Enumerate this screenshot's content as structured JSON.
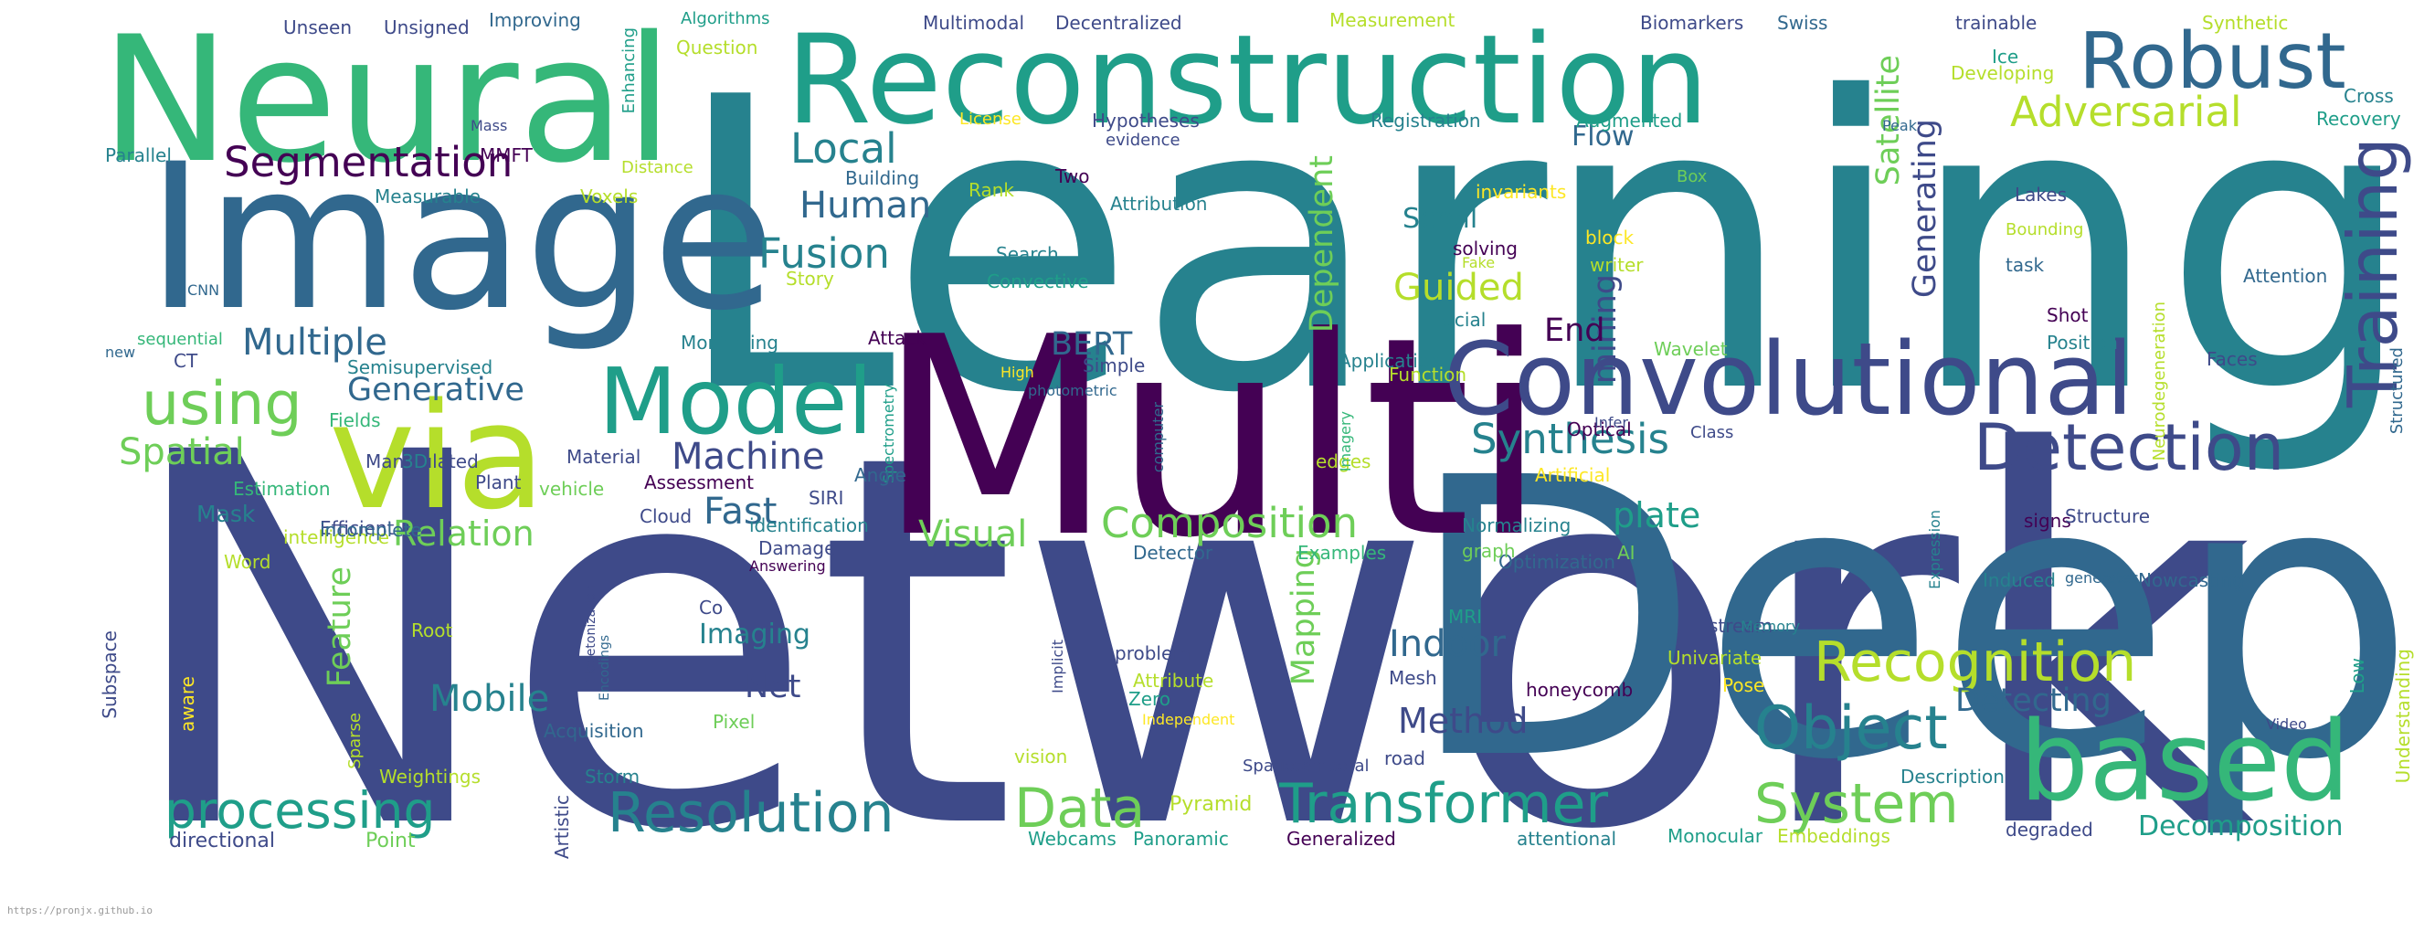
{
  "palette": [
    "#440154",
    "#3e4a89",
    "#31688e",
    "#26828e",
    "#1f9e89",
    "#35b779",
    "#6ece58",
    "#b5de2b",
    "#fde725"
  ],
  "footer": "https://pronjx.github.io",
  "words": [
    {
      "text": "Network",
      "color": "#3e4a89"
    },
    {
      "text": "Learning",
      "color": "#26828e"
    },
    {
      "text": "Deep",
      "color": "#31688e"
    },
    {
      "text": "Multi",
      "color": "#440154"
    },
    {
      "text": "Image",
      "color": "#31688e"
    },
    {
      "text": "Neural",
      "color": "#35b779"
    },
    {
      "text": "Reconstruction",
      "color": "#1f9e89"
    },
    {
      "text": "via",
      "color": "#b5de2b"
    },
    {
      "text": "Convolutional",
      "color": "#3e4a89"
    },
    {
      "text": "based",
      "color": "#35b779"
    },
    {
      "text": "Model",
      "color": "#1f9e89"
    },
    {
      "text": "Robust",
      "color": "#31688e"
    },
    {
      "text": "Training",
      "color": "#3e4a89"
    },
    {
      "text": "Detection",
      "color": "#3e4a89"
    },
    {
      "text": "Recognition",
      "color": "#b5de2b"
    },
    {
      "text": "Object",
      "color": "#26828e"
    },
    {
      "text": "Transformer",
      "color": "#1f9e89"
    },
    {
      "text": "Resolution",
      "color": "#26828e"
    },
    {
      "text": "System",
      "color": "#6ece58"
    },
    {
      "text": "processing",
      "color": "#1f9e89"
    },
    {
      "text": "Data",
      "color": "#6ece58"
    },
    {
      "text": "Composition",
      "color": "#6ece58"
    },
    {
      "text": "using",
      "color": "#6ece58"
    },
    {
      "text": "Segmentation",
      "color": "#440154"
    },
    {
      "text": "Adversarial",
      "color": "#b5de2b"
    },
    {
      "text": "Fusion",
      "color": "#26828e"
    },
    {
      "text": "Synthesis",
      "color": "#26828e"
    },
    {
      "text": "Machine",
      "color": "#3e4a89"
    },
    {
      "text": "Spatial",
      "color": "#6ece58"
    },
    {
      "text": "Multiple",
      "color": "#31688e"
    },
    {
      "text": "Generative",
      "color": "#31688e"
    },
    {
      "text": "Local",
      "color": "#26828e"
    },
    {
      "text": "Human",
      "color": "#31688e"
    },
    {
      "text": "Guided",
      "color": "#b5de2b"
    },
    {
      "text": "Indoor",
      "color": "#31688e"
    },
    {
      "text": "Method",
      "color": "#3e4a89"
    },
    {
      "text": "Mobile",
      "color": "#26828e"
    },
    {
      "text": "Net",
      "color": "#3e4a89"
    },
    {
      "text": "Relation",
      "color": "#6ece58"
    },
    {
      "text": "Visual",
      "color": "#6ece58"
    },
    {
      "text": "Fast",
      "color": "#31688e"
    },
    {
      "text": "plate",
      "color": "#1f9e89"
    },
    {
      "text": "BERT",
      "color": "#31688e"
    },
    {
      "text": "Detecting",
      "color": "#31688e"
    },
    {
      "text": "Decomposition",
      "color": "#1f9e89"
    },
    {
      "text": "Feature",
      "color": "#6ece58"
    },
    {
      "text": "Mapping",
      "color": "#6ece58"
    },
    {
      "text": "Dependent",
      "color": "#6ece58"
    },
    {
      "text": "Satellite",
      "color": "#6ece58"
    },
    {
      "text": "Generating",
      "color": "#3e4a89"
    },
    {
      "text": "mining",
      "color": "#3e4a89"
    },
    {
      "text": "End",
      "color": "#440154"
    },
    {
      "text": "Imaging",
      "color": "#26828e"
    },
    {
      "text": "Scroll",
      "color": "#26828e"
    },
    {
      "text": "Flow",
      "color": "#31688e"
    },
    {
      "text": "Mask",
      "color": "#26828e"
    },
    {
      "text": "Pyramid",
      "color": "#b5de2b"
    },
    {
      "text": "directional",
      "color": "#3e4a89"
    },
    {
      "text": "Point",
      "color": "#6ece58"
    },
    {
      "text": "Webcams",
      "color": "#1f9e89"
    },
    {
      "text": "Panoramic",
      "color": "#1f9e89"
    },
    {
      "text": "Generalized",
      "color": "#440154"
    },
    {
      "text": "attentional",
      "color": "#26828e"
    },
    {
      "text": "Monocular",
      "color": "#1f9e89"
    },
    {
      "text": "Embeddings",
      "color": "#b5de2b"
    },
    {
      "text": "degraded",
      "color": "#3e4a89"
    },
    {
      "text": "Understanding",
      "color": "#b5de2b"
    },
    {
      "text": "Low",
      "color": "#1f9e89"
    },
    {
      "text": "Nowcasting",
      "color": "#31688e"
    },
    {
      "text": "Induced",
      "color": "#26828e"
    },
    {
      "text": "Shot",
      "color": "#440154"
    },
    {
      "text": "Position",
      "color": "#26828e"
    },
    {
      "text": "Faces",
      "color": "#3e4a89"
    },
    {
      "text": "Structured",
      "color": "#31688e"
    },
    {
      "text": "Attention",
      "color": "#31688e"
    },
    {
      "text": "Neurodegeneration",
      "color": "#b5de2b"
    },
    {
      "text": "Lakes",
      "color": "#3e4a89"
    },
    {
      "text": "Bounding",
      "color": "#b5de2b"
    },
    {
      "text": "task",
      "color": "#31688e"
    },
    {
      "text": "Cross",
      "color": "#26828e"
    },
    {
      "text": "Recovery",
      "color": "#1f9e89"
    },
    {
      "text": "Synthetic",
      "color": "#b5de2b"
    },
    {
      "text": "trainable",
      "color": "#3e4a89"
    },
    {
      "text": "Ice",
      "color": "#1f9e89"
    },
    {
      "text": "Developing",
      "color": "#b5de2b"
    },
    {
      "text": "Peak",
      "color": "#31688e"
    },
    {
      "text": "Biomarkers",
      "color": "#3e4a89"
    },
    {
      "text": "Swiss",
      "color": "#31688e"
    },
    {
      "text": "Measurement",
      "color": "#b5de2b"
    },
    {
      "text": "Augmented",
      "color": "#1f9e89"
    },
    {
      "text": "Registration",
      "color": "#26828e"
    },
    {
      "text": "Hypotheses",
      "color": "#3e4a89"
    },
    {
      "text": "evidence",
      "color": "#3e4a89"
    },
    {
      "text": "License",
      "color": "#fde725"
    },
    {
      "text": "Multimodal",
      "color": "#3e4a89"
    },
    {
      "text": "Decentralized",
      "color": "#3e4a89"
    },
    {
      "text": "Algorithms",
      "color": "#1f9e89"
    },
    {
      "text": "Question",
      "color": "#b5de2b"
    },
    {
      "text": "Improving",
      "color": "#31688e"
    },
    {
      "text": "Unsigned",
      "color": "#3e4a89"
    },
    {
      "text": "Unseen",
      "color": "#3e4a89"
    },
    {
      "text": "Enhancing",
      "color": "#1f9e89"
    },
    {
      "text": "Mass",
      "color": "#3e4a89"
    },
    {
      "text": "MMFT",
      "color": "#440154"
    },
    {
      "text": "Distance",
      "color": "#b5de2b"
    },
    {
      "text": "Parallel",
      "color": "#26828e"
    },
    {
      "text": "Measurable",
      "color": "#26828e"
    },
    {
      "text": "Voxels",
      "color": "#b5de2b"
    },
    {
      "text": "Building",
      "color": "#31688e"
    },
    {
      "text": "Rank",
      "color": "#b5de2b"
    },
    {
      "text": "Two",
      "color": "#440154"
    },
    {
      "text": "Attribution",
      "color": "#26828e"
    },
    {
      "text": "Search",
      "color": "#26828e"
    },
    {
      "text": "Convective",
      "color": "#1f9e89"
    },
    {
      "text": "Story",
      "color": "#b5de2b"
    },
    {
      "text": "CNN",
      "color": "#31688e"
    },
    {
      "text": "sequential",
      "color": "#35b779"
    },
    {
      "text": "new",
      "color": "#31688e"
    },
    {
      "text": "CT",
      "color": "#3e4a89"
    },
    {
      "text": "Semisupervised",
      "color": "#26828e"
    },
    {
      "text": "Monitoring",
      "color": "#26828e"
    },
    {
      "text": "Attack",
      "color": "#440154"
    },
    {
      "text": "Spectrometry",
      "color": "#1f9e89"
    },
    {
      "text": "High",
      "color": "#fde725"
    },
    {
      "text": "photometric",
      "color": "#31688e"
    },
    {
      "text": "Simple",
      "color": "#3e4a89"
    },
    {
      "text": "computer",
      "color": "#31688e"
    },
    {
      "text": "Fields",
      "color": "#35b779"
    },
    {
      "text": "Manipulated",
      "color": "#3e4a89"
    },
    {
      "text": "3D",
      "color": "#26828e"
    },
    {
      "text": "Material",
      "color": "#3e4a89"
    },
    {
      "text": "vehicle",
      "color": "#6ece58"
    },
    {
      "text": "Estimation",
      "color": "#35b779"
    },
    {
      "text": "Plant",
      "color": "#3e4a89"
    },
    {
      "text": "Assessment",
      "color": "#440154"
    },
    {
      "text": "Angle",
      "color": "#31688e"
    },
    {
      "text": "SIRI",
      "color": "#3e4a89"
    },
    {
      "text": "Cloud",
      "color": "#3e4a89"
    },
    {
      "text": "Word",
      "color": "#b5de2b"
    },
    {
      "text": "Efficient",
      "color": "#3e4a89"
    },
    {
      "text": "identification",
      "color": "#26828e"
    },
    {
      "text": "intelligence",
      "color": "#b5de2b"
    },
    {
      "text": "incomplete",
      "color": "#31688e"
    },
    {
      "text": "Damage",
      "color": "#3e4a89"
    },
    {
      "text": "Answering",
      "color": "#440154"
    },
    {
      "text": "Skeletonization",
      "color": "#3e4a89"
    },
    {
      "text": "Encodings",
      "color": "#31688e"
    },
    {
      "text": "Root",
      "color": "#b5de2b"
    },
    {
      "text": "Co",
      "color": "#3e4a89"
    },
    {
      "text": "Subspace",
      "color": "#3e4a89"
    },
    {
      "text": "aware",
      "color": "#fde725"
    },
    {
      "text": "Sparse",
      "color": "#b5de2b"
    },
    {
      "text": "Weightings",
      "color": "#b5de2b"
    },
    {
      "text": "Acquisition",
      "color": "#31688e"
    },
    {
      "text": "Storm",
      "color": "#26828e"
    },
    {
      "text": "Artistic",
      "color": "#3e4a89"
    },
    {
      "text": "Pixel",
      "color": "#6ece58"
    },
    {
      "text": "Implicit",
      "color": "#3e4a89"
    },
    {
      "text": "vision",
      "color": "#b5de2b"
    },
    {
      "text": "problem",
      "color": "#3e4a89"
    },
    {
      "text": "Attribute",
      "color": "#b5de2b"
    },
    {
      "text": "Zero",
      "color": "#1f9e89"
    },
    {
      "text": "Independent",
      "color": "#fde725"
    },
    {
      "text": "Spatiotemporal",
      "color": "#3e4a89"
    },
    {
      "text": "road",
      "color": "#3e4a89"
    },
    {
      "text": "Description",
      "color": "#26828e"
    },
    {
      "text": "Video",
      "color": "#3e4a89"
    },
    {
      "text": "Mesh",
      "color": "#3e4a89"
    },
    {
      "text": "honeycomb",
      "color": "#440154"
    },
    {
      "text": "Univariate",
      "color": "#b5de2b"
    },
    {
      "text": "Pose",
      "color": "#fde725"
    },
    {
      "text": "stream",
      "color": "#3e4a89"
    },
    {
      "text": "Memory",
      "color": "#26828e"
    },
    {
      "text": "MRI",
      "color": "#1f9e89"
    },
    {
      "text": "Optimization",
      "color": "#31688e"
    },
    {
      "text": "AI",
      "color": "#6ece58"
    },
    {
      "text": "generates",
      "color": "#31688e"
    },
    {
      "text": "signs",
      "color": "#440154"
    },
    {
      "text": "Expression",
      "color": "#26828e"
    },
    {
      "text": "Structure",
      "color": "#3e4a89"
    },
    {
      "text": "Detector",
      "color": "#31688e"
    },
    {
      "text": "Examples",
      "color": "#35b779"
    },
    {
      "text": "graph",
      "color": "#6ece58"
    },
    {
      "text": "Normalizing",
      "color": "#26828e"
    },
    {
      "text": "Artificial",
      "color": "#fde725"
    },
    {
      "text": "edges",
      "color": "#b5de2b"
    },
    {
      "text": "Imagery",
      "color": "#35b779"
    },
    {
      "text": "Optical",
      "color": "#440154"
    },
    {
      "text": "Class",
      "color": "#3e4a89"
    },
    {
      "text": "Infer",
      "color": "#3e4a89"
    },
    {
      "text": "Application",
      "color": "#26828e"
    },
    {
      "text": "Function",
      "color": "#b5de2b"
    },
    {
      "text": "Facial",
      "color": "#26828e"
    },
    {
      "text": "Wavelet",
      "color": "#6ece58"
    },
    {
      "text": "solving",
      "color": "#440154"
    },
    {
      "text": "Fake",
      "color": "#b5de2b"
    },
    {
      "text": "invariants",
      "color": "#fde725"
    },
    {
      "text": "block",
      "color": "#fde725"
    },
    {
      "text": "Box",
      "color": "#6ece58"
    },
    {
      "text": "writer",
      "color": "#b5de2b"
    }
  ]
}
